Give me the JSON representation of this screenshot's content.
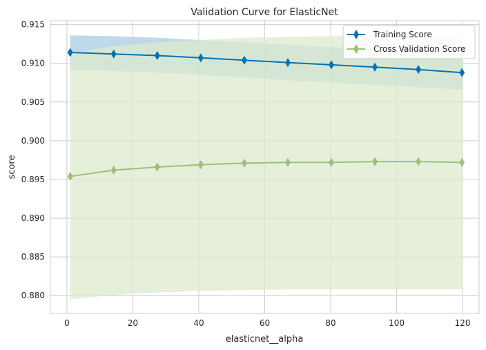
{
  "chart_data": {
    "type": "line",
    "title": "Validation Curve for ElasticNet",
    "xlabel": "elasticnet__alpha",
    "ylabel": "score",
    "xlim": [
      -5,
      125
    ],
    "ylim": [
      0.8777,
      0.9155
    ],
    "xticks": [
      0,
      20,
      40,
      60,
      80,
      100,
      120
    ],
    "xtick_labels": [
      "0",
      "20",
      "40",
      "60",
      "80",
      "100",
      "120"
    ],
    "yticks": [
      0.88,
      0.885,
      0.89,
      0.895,
      0.9,
      0.905,
      0.91,
      0.915
    ],
    "ytick_labels": [
      "0.880",
      "0.885",
      "0.890",
      "0.895",
      "0.900",
      "0.905",
      "0.910",
      "0.915"
    ],
    "grid": true,
    "legend_position": "top-right",
    "x": [
      1,
      14.2,
      27.4,
      40.6,
      53.8,
      67,
      80.2,
      93.4,
      106.6,
      119.8
    ],
    "series": [
      {
        "name": "Training Score",
        "color": "#0072b2",
        "band_color": "#a9cce3",
        "values": [
          0.9114,
          0.9112,
          0.911,
          0.9107,
          0.9104,
          0.9101,
          0.9098,
          0.9095,
          0.9092,
          0.9088
        ],
        "upper": [
          0.9136,
          0.9135,
          0.9133,
          0.913,
          0.9127,
          0.9124,
          0.9121,
          0.9117,
          0.9114,
          0.9111
        ],
        "lower": [
          0.9091,
          0.909,
          0.9088,
          0.9085,
          0.9082,
          0.9078,
          0.9075,
          0.9072,
          0.9069,
          0.9066
        ]
      },
      {
        "name": "Cross Validation Score",
        "color": "#9bc07a",
        "band_color": "#dde9cd",
        "values": [
          0.8954,
          0.8962,
          0.8966,
          0.8969,
          0.8971,
          0.8972,
          0.8972,
          0.8973,
          0.8973,
          0.8972
        ],
        "upper": [
          0.9113,
          0.9122,
          0.9127,
          0.913,
          0.9133,
          0.9134,
          0.9135,
          0.9135,
          0.9135,
          0.9135
        ],
        "lower": [
          0.8795,
          0.8801,
          0.8804,
          0.8806,
          0.8807,
          0.8808,
          0.8808,
          0.8808,
          0.8808,
          0.8808
        ]
      }
    ]
  }
}
